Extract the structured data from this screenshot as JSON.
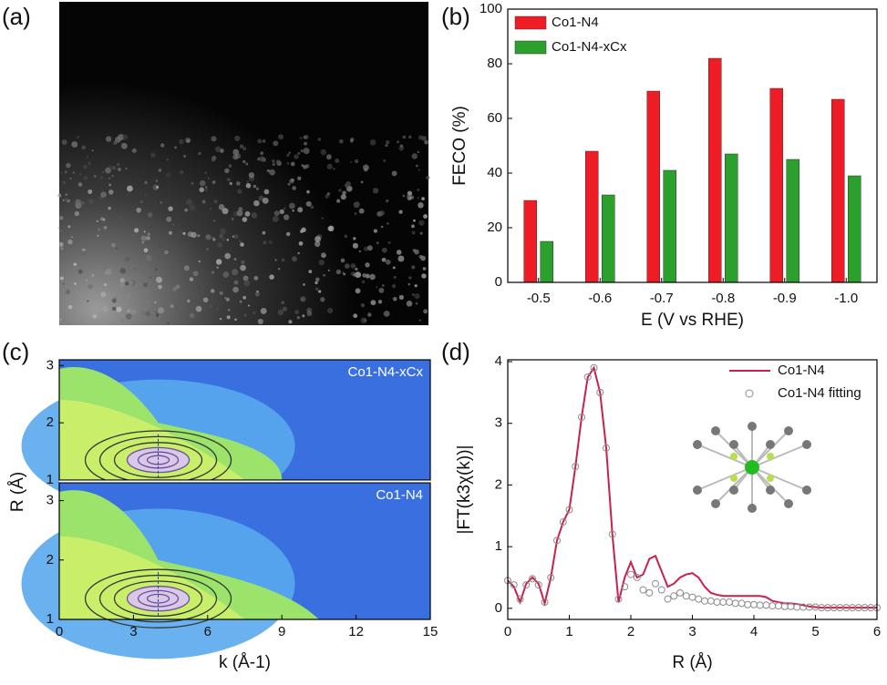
{
  "chart_data": [
    {
      "type": "image",
      "panel_label": "(a)"
    },
    {
      "type": "bar",
      "panel_label": "(b)",
      "xlabel": "E (V vs RHE)",
      "ylabel": "FECO (%)",
      "categories": [
        "-0.5",
        "-0.6",
        "-0.7",
        "-0.8",
        "-0.9",
        "-1.0"
      ],
      "series": [
        {
          "name": "Co1-N4",
          "color": "#ee1c25",
          "values": [
            30,
            48,
            70,
            82,
            71,
            67
          ]
        },
        {
          "name": "Co1-N4-xCx",
          "color": "#2ca02c",
          "values": [
            15,
            32,
            41,
            47,
            45,
            39
          ]
        }
      ],
      "ylim": [
        0,
        100
      ],
      "yticks": [
        0,
        20,
        40,
        60,
        80,
        100
      ],
      "legend": "upper left"
    },
    {
      "type": "contour",
      "panel_label": "(c)",
      "xlabel": "k (Å-1)",
      "ylabel": "R (Å)",
      "xlim": [
        0,
        15
      ],
      "xticks": [
        0,
        3,
        6,
        9,
        12,
        15
      ],
      "subplots": [
        {
          "label": "Co1-N4-xCx",
          "ylim": [
            1,
            3.1
          ],
          "yticks": [
            1,
            2,
            3
          ]
        },
        {
          "label": "Co1-N4",
          "ylim": [
            1,
            3.3
          ],
          "yticks": [
            1,
            2,
            3
          ]
        }
      ]
    },
    {
      "type": "line",
      "panel_label": "(d)",
      "xlabel": "R (Å)",
      "ylabel": "|FT(k3χ(k))|",
      "x": [
        0,
        0.1,
        0.2,
        0.3,
        0.4,
        0.5,
        0.6,
        0.7,
        0.8,
        0.9,
        1,
        1.1,
        1.2,
        1.3,
        1.4,
        1.5,
        1.6,
        1.7,
        1.8,
        1.9,
        2,
        2.1,
        2.2,
        2.3,
        2.4,
        2.5,
        2.6,
        2.7,
        2.8,
        2.9,
        3,
        3.1,
        3.2,
        3.3,
        3.4,
        3.5,
        3.6,
        3.7,
        3.8,
        3.9,
        4,
        4.1,
        4.2,
        4.3,
        4.4,
        4.5,
        4.6,
        4.7,
        4.8,
        4.9,
        5,
        5.1,
        5.2,
        5.3,
        5.4,
        5.5,
        5.6,
        5.7,
        5.8,
        5.9,
        6
      ],
      "series": [
        {
          "name": "Co1-N4",
          "color": "#c8214b",
          "style": "line",
          "values": [
            0.45,
            0.35,
            0.1,
            0.4,
            0.5,
            0.4,
            0.08,
            0.5,
            1.1,
            1.4,
            1.6,
            2.3,
            3.1,
            3.75,
            3.9,
            3.5,
            2.6,
            1.2,
            0.1,
            0.5,
            0.75,
            0.5,
            0.55,
            0.8,
            0.85,
            0.6,
            0.35,
            0.4,
            0.5,
            0.55,
            0.57,
            0.5,
            0.35,
            0.25,
            0.22,
            0.2,
            0.2,
            0.2,
            0.2,
            0.2,
            0.2,
            0.2,
            0.18,
            0.12,
            0.1,
            0.08,
            0.08,
            0.07,
            0.05,
            0.03,
            0.02,
            0.01,
            0.01,
            0.01,
            0.01,
            0.01,
            0.01,
            0.01,
            0.01,
            0.01,
            0.01
          ]
        },
        {
          "name": "Co1-N4 fitting",
          "color": "#8c8c8c",
          "style": "scatter",
          "values": [
            0.45,
            0.38,
            0.15,
            0.38,
            0.48,
            0.38,
            0.1,
            0.5,
            1.1,
            1.4,
            1.6,
            2.3,
            3.1,
            3.75,
            3.9,
            3.5,
            2.6,
            1.2,
            0.15,
            0.35,
            0.55,
            0.5,
            0.3,
            0.25,
            0.4,
            0.3,
            0.15,
            0.2,
            0.25,
            0.2,
            0.18,
            0.15,
            0.12,
            0.12,
            0.1,
            0.1,
            0.1,
            0.08,
            0.08,
            0.06,
            0.06,
            0.05,
            0.05,
            0.04,
            0.04,
            0.03,
            0.03,
            0.02,
            0.02,
            0.02,
            0.02,
            0.01,
            0.01,
            0.01,
            0.01,
            0.01,
            0.01,
            0.01,
            0.01,
            0.01,
            0.01
          ]
        }
      ],
      "xlim": [
        0,
        6
      ],
      "xticks": [
        0,
        1,
        2,
        3,
        4,
        5,
        6
      ],
      "ylim": [
        -0.18,
        4.03
      ],
      "yticks": [
        0,
        1,
        2,
        3,
        4
      ],
      "legend": "upper right"
    }
  ]
}
